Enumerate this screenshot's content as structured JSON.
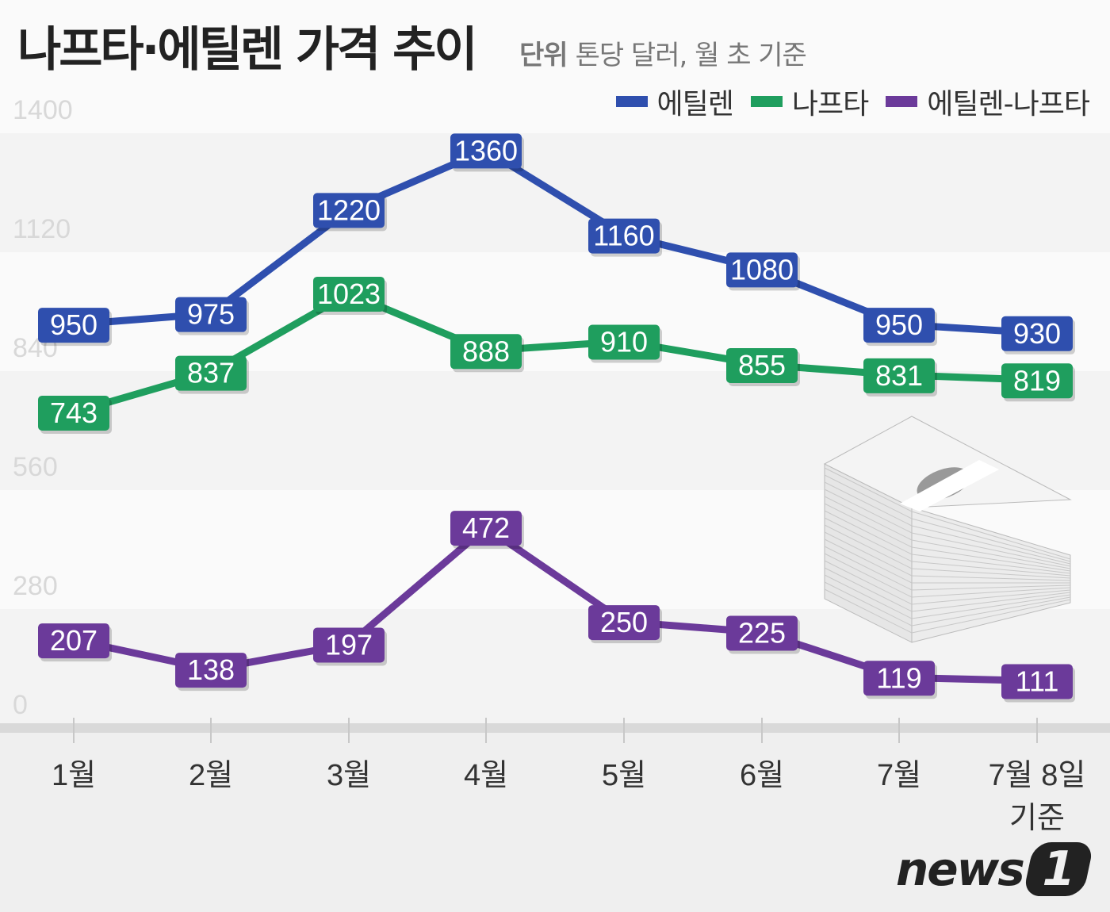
{
  "chart_data": {
    "type": "line",
    "title": "나프타·에틸렌 가격 추이",
    "subtitle_label": "단위",
    "subtitle": "톤당 달러, 월 초 기준",
    "categories": [
      "1월",
      "2월",
      "3월",
      "4월",
      "5월",
      "6월",
      "7월",
      "7월 8일 기준"
    ],
    "series": [
      {
        "name": "에틸렌",
        "color": "#2f4fae",
        "values": [
          950,
          975,
          1220,
          1360,
          1160,
          1080,
          950,
          930
        ]
      },
      {
        "name": "나프타",
        "color": "#1f9e5e",
        "values": [
          743,
          837,
          1023,
          888,
          910,
          855,
          831,
          819
        ]
      },
      {
        "name": "에틸렌-나프타",
        "color": "#6b3a9a",
        "values": [
          207,
          138,
          197,
          472,
          250,
          225,
          119,
          111
        ]
      }
    ],
    "yticks": [
      0,
      280,
      560,
      840,
      1120,
      1400
    ],
    "ylim": [
      0,
      1400
    ],
    "legend": "top-right",
    "grid": "alternating bands",
    "data_labels": true
  },
  "logo": {
    "text": "news",
    "mark": "1"
  }
}
